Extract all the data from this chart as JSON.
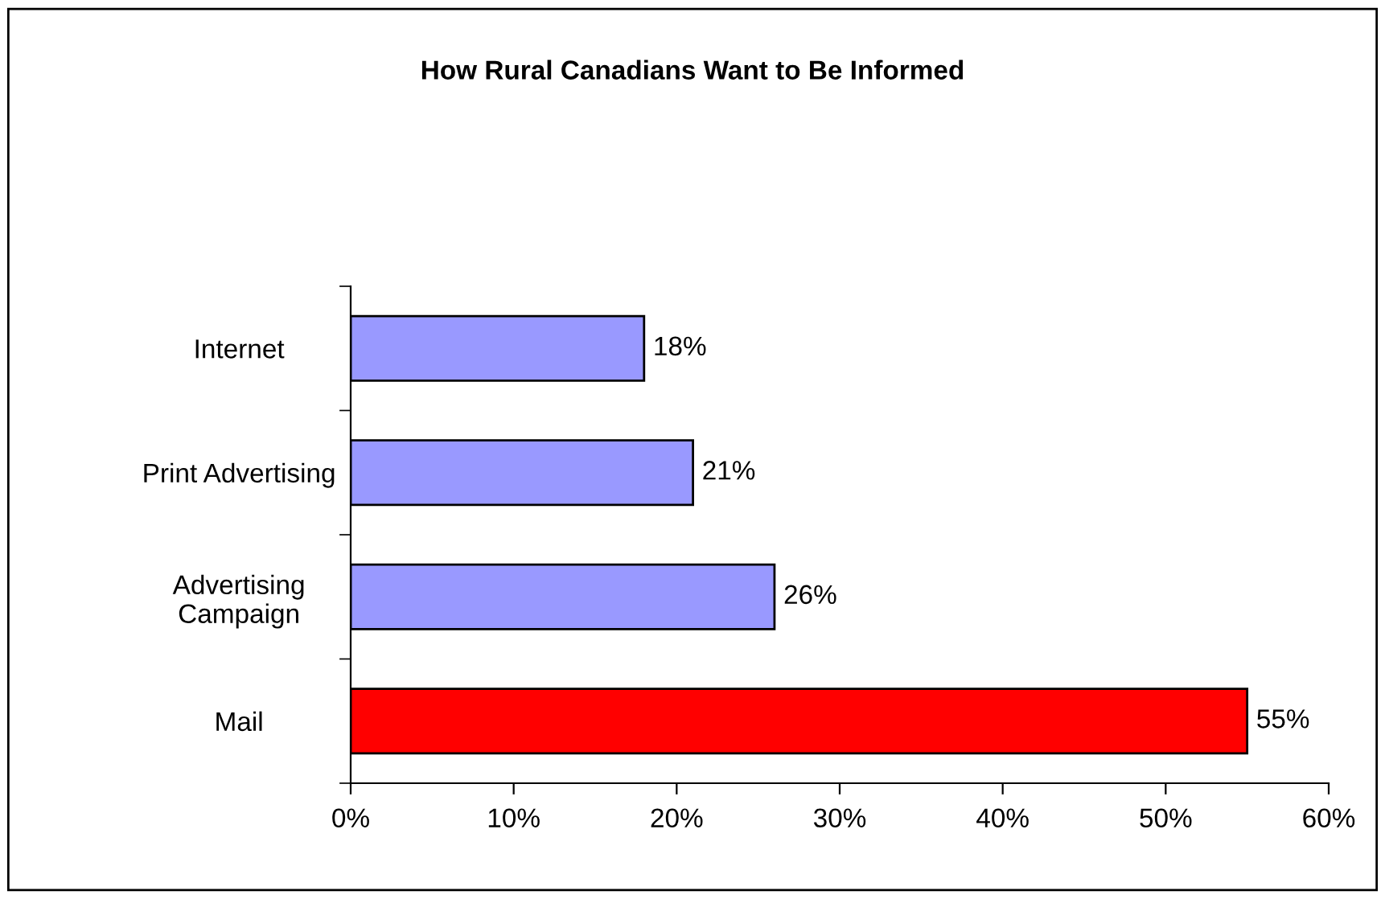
{
  "chart_data": {
    "type": "bar",
    "orientation": "horizontal",
    "title": "How Rural Canadians Want to Be Informed",
    "categories": [
      "Internet",
      "Print Advertising",
      "Advertising\nCampaign",
      "Mail"
    ],
    "values": [
      18,
      21,
      26,
      55
    ],
    "colors": [
      "#9999ff",
      "#9999ff",
      "#9999ff",
      "#ff0000"
    ],
    "value_labels": [
      "18%",
      "21%",
      "26%",
      "55%"
    ],
    "xlim": [
      0,
      60
    ],
    "xticks": [
      {
        "value": 0,
        "label": "0%"
      },
      {
        "value": 10,
        "label": "10%"
      },
      {
        "value": 20,
        "label": "20%"
      },
      {
        "value": 30,
        "label": "30%"
      },
      {
        "value": 40,
        "label": "40%"
      },
      {
        "value": 50,
        "label": "50%"
      },
      {
        "value": 60,
        "label": "60%"
      }
    ],
    "grid": false,
    "legend": false
  }
}
